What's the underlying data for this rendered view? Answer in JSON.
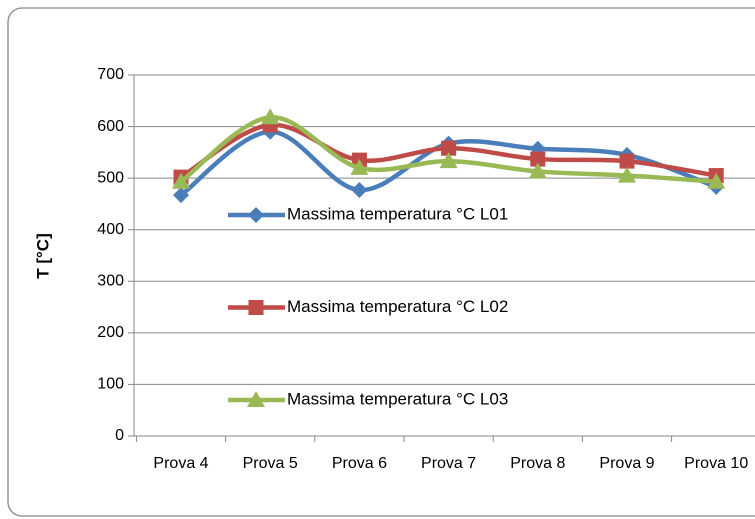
{
  "chart_data": {
    "type": "line",
    "y_label": "T [°C]",
    "categories": [
      "Prova 4",
      "Prova 5",
      "Prova 6",
      "Prova 7",
      "Prova 8",
      "Prova 9",
      "Prova 10"
    ],
    "series": [
      {
        "name": "Massima temperatura °C L01",
        "color": "#4a7ebb",
        "marker": "diamond",
        "values": [
          467,
          590,
          477,
          567,
          557,
          545,
          483
        ]
      },
      {
        "name": "Massima temperatura °C L02",
        "color": "#be4b48",
        "marker": "square",
        "values": [
          502,
          603,
          535,
          558,
          537,
          533,
          505
        ]
      },
      {
        "name": "Massima temperatura °C L03",
        "color": "#98b954",
        "marker": "triangle",
        "values": [
          493,
          618,
          520,
          533,
          513,
          505,
          493
        ]
      }
    ],
    "smooth": true,
    "ylim": [
      0,
      700
    ],
    "yticks": [
      0,
      100,
      200,
      300,
      400,
      500,
      600,
      700
    ],
    "grid": true
  }
}
